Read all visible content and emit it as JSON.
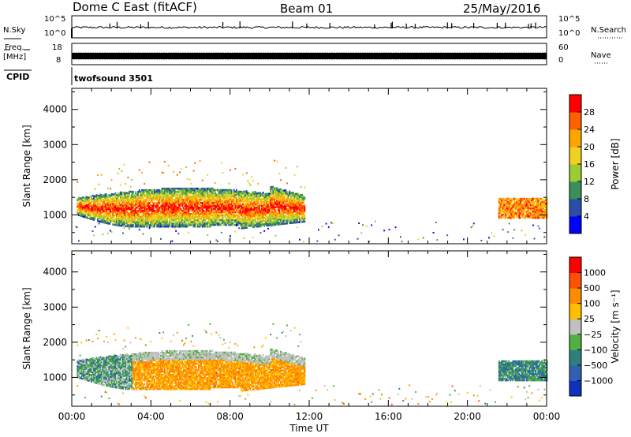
{
  "header": {
    "title": "Dome C East (fitACF)",
    "beam": "Beam 01",
    "date": "25/May/2016"
  },
  "aux_panels": {
    "nsky_label": "N.Sky",
    "nsky_ticks": [
      "10^5",
      "10^0"
    ],
    "nsearch_label": "N.Search",
    "nsearch_ticks": [
      "10^5",
      "10^0"
    ],
    "freq_label": "Freq.",
    "freq_unit": "[MHz]",
    "freq_ticks": [
      "18",
      "8"
    ],
    "nave_label": "Nave",
    "nave_ticks": [
      "60",
      "0"
    ],
    "cpid_label": "CPID",
    "cpid_value": "twofsound 3501"
  },
  "chart_data": [
    {
      "type": "heatmap",
      "name": "power",
      "ylabel": "Slant Range [km]",
      "ylim": [
        180,
        4600
      ],
      "yticks": [
        1000,
        2000,
        3000,
        4000
      ],
      "xlim": [
        0,
        24
      ],
      "xticks": [
        "00:00",
        "04:00",
        "08:00",
        "12:00",
        "16:00",
        "20:00",
        "00:00"
      ],
      "colorbar": {
        "label": "Power [dB]",
        "ticks": [
          "4",
          "8",
          "12",
          "16",
          "20",
          "24",
          "28"
        ],
        "colors": [
          "#0000ff",
          "#2b4ea8",
          "#3b8f5a",
          "#9acd32",
          "#f0d020",
          "#ffa500",
          "#ff6000",
          "#ff0000"
        ]
      }
    },
    {
      "type": "heatmap",
      "name": "velocity",
      "ylabel": "Slant Range [km]",
      "ylim": [
        180,
        4600
      ],
      "yticks": [
        1000,
        2000,
        3000,
        4000
      ],
      "xlim": [
        0,
        24
      ],
      "xticks": [
        "00:00",
        "04:00",
        "08:00",
        "12:00",
        "16:00",
        "20:00",
        "00:00"
      ],
      "xlabel": "Time UT",
      "colorbar": {
        "label": "Velocity [m s⁻¹]",
        "ticks": [
          "1000",
          "500",
          "100",
          "25",
          "−25",
          "−100",
          "−500",
          "−1000"
        ],
        "colors": [
          "#1030c0",
          "#3060b0",
          "#2f7f7f",
          "#50b040",
          "#c0c0c0",
          "#ffc000",
          "#ff8c00",
          "#ff5000",
          "#ff0000"
        ]
      }
    }
  ]
}
